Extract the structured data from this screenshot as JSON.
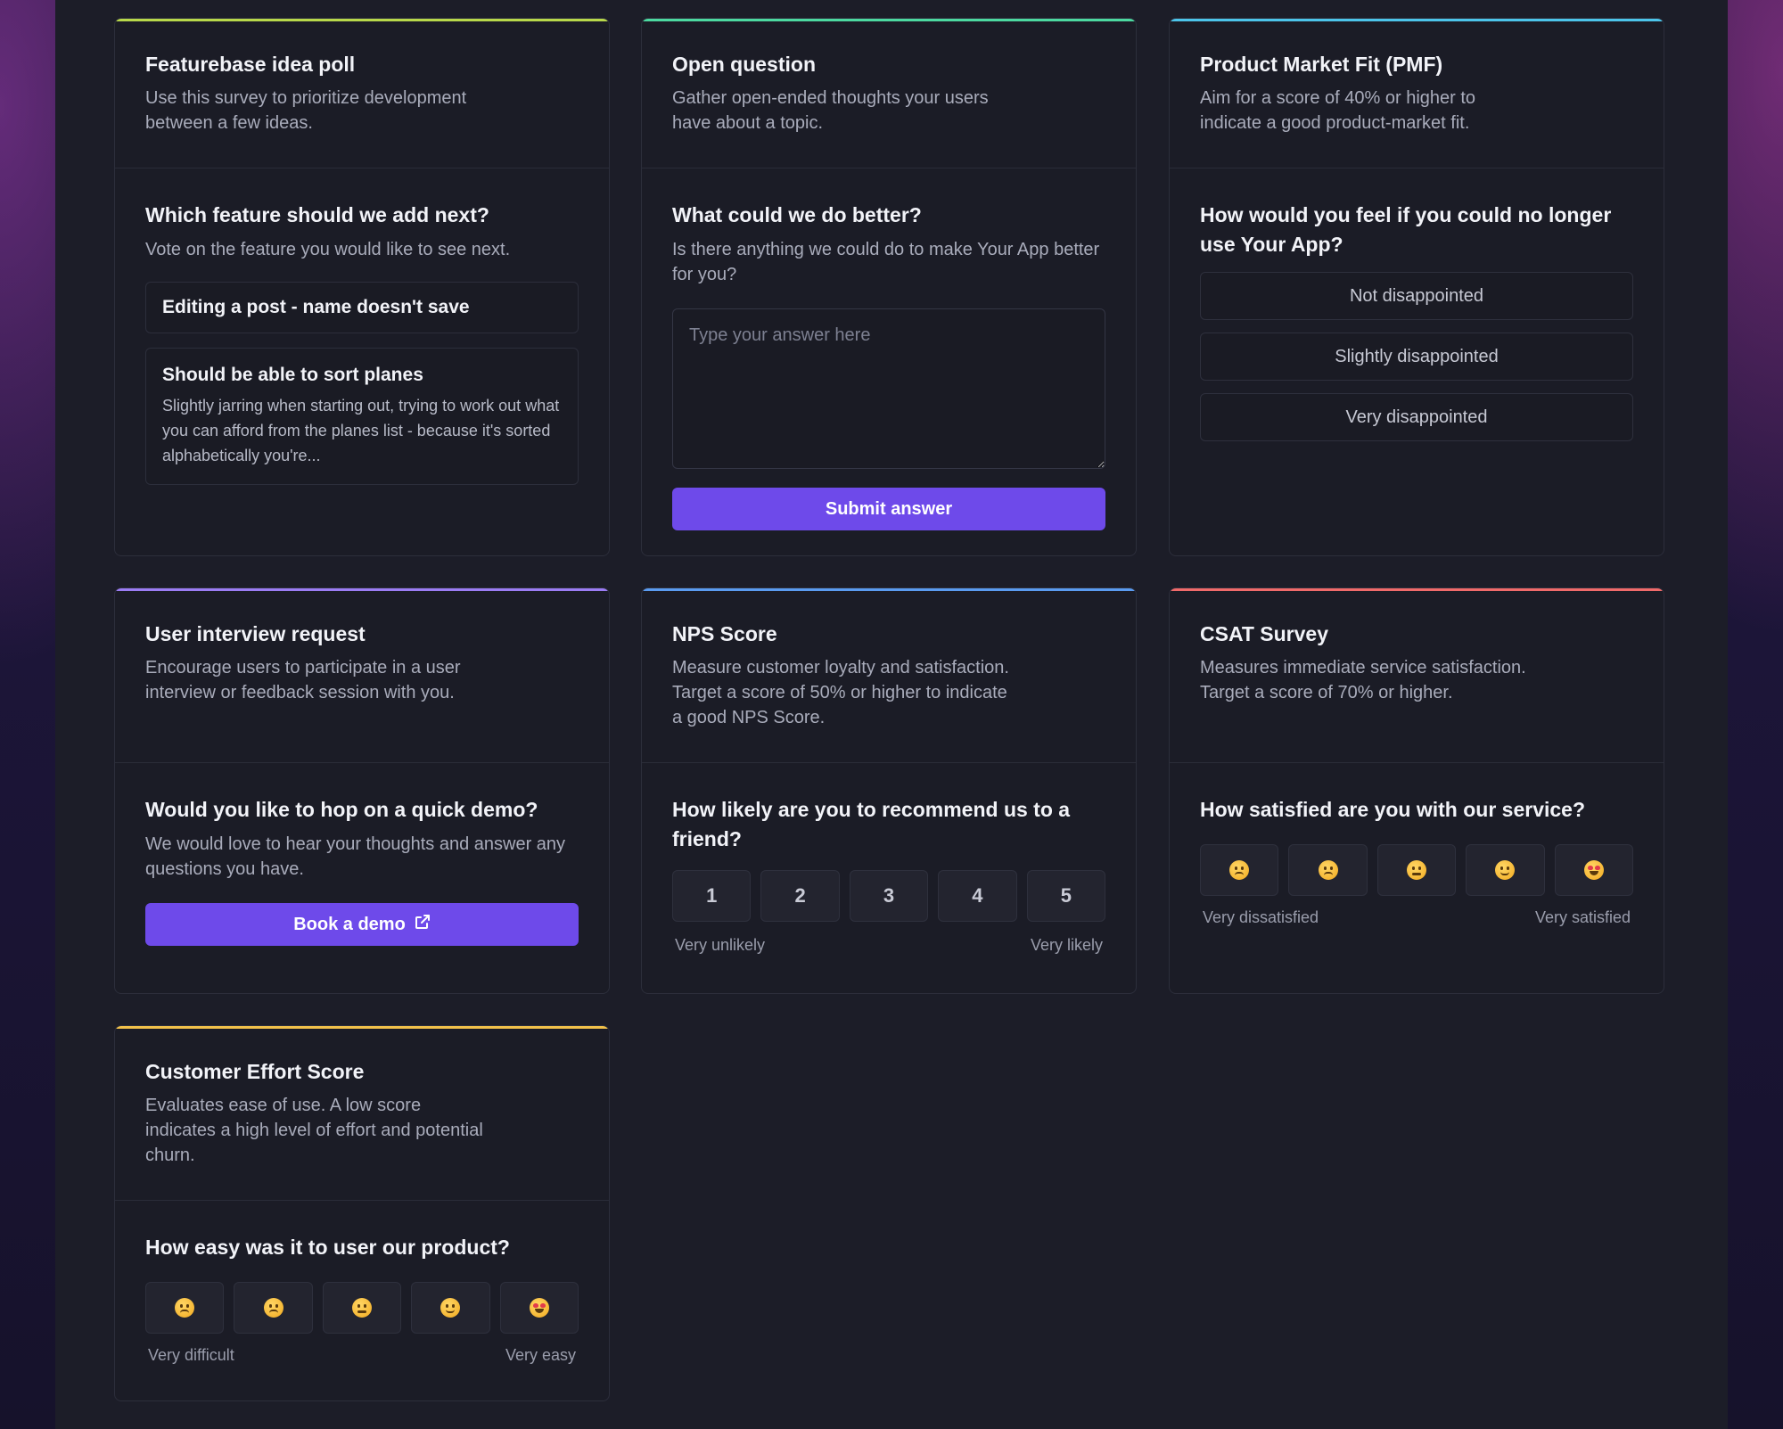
{
  "cards": {
    "featurebase": {
      "accent": "#b8d84a",
      "title": "Featurebase idea poll",
      "description": "Use this survey to prioritize development between a few ideas.",
      "question": "Which feature should we add next?",
      "question_desc": "Vote on the feature you would like to see next.",
      "ideas": [
        {
          "title": "Editing a post - name doesn't save",
          "text": ""
        },
        {
          "title": "Should be able to sort planes",
          "text": "Slightly jarring when starting out, trying to work out what you can afford from the planes list - because it's sorted alphabetically you're..."
        }
      ]
    },
    "open_question": {
      "accent": "#4cd9a0",
      "title": "Open question",
      "description": "Gather open-ended thoughts your users have about a topic.",
      "question": "What could we do better?",
      "question_desc": "Is there anything we could do to make Your App better for you?",
      "answer_placeholder": "Type your answer here",
      "submit_label": "Submit answer"
    },
    "pmf": {
      "accent": "#4cc4ea",
      "title": "Product Market Fit (PMF)",
      "description": "Aim for a score of 40% or higher to indicate a good product-market fit.",
      "question": "How would you feel if you could no longer use Your App?",
      "options": [
        "Not disappointed",
        "Slightly disappointed",
        "Very disappointed"
      ]
    },
    "interview": {
      "accent": "#9b7cf4",
      "title": "User interview request",
      "description": "Encourage users to participate in a user interview or feedback session with you.",
      "question": "Would you like to hop on a quick demo?",
      "question_desc": "We would love to hear your thoughts and answer any questions you have.",
      "button_label": "Book a demo",
      "button_icon": "external-link-icon"
    },
    "nps": {
      "accent": "#5a9bf0",
      "title": "NPS Score",
      "description": "Measure customer loyalty and satisfaction. Target a score of 50% or higher to indicate a good NPS Score.",
      "question": "How likely are you to recommend us to a friend?",
      "scale": [
        "1",
        "2",
        "3",
        "4",
        "5"
      ],
      "low_label": "Very unlikely",
      "high_label": "Very likely"
    },
    "csat": {
      "accent": "#f06a6a",
      "title": "CSAT Survey",
      "description": "Measures immediate service satisfaction. Target a score of 70% or higher.",
      "question": "How satisfied are you with our service?",
      "emojis": [
        "persevering-face-icon",
        "disappointed-face-icon",
        "neutral-face-icon",
        "slightly-smiling-face-icon",
        "heart-eyes-face-icon"
      ],
      "low_label": "Very dissatisfied",
      "high_label": "Very satisfied"
    },
    "ces": {
      "accent": "#f2c14a",
      "title": "Customer Effort Score",
      "description": "Evaluates ease of use. A low score indicates a high level of effort and potential churn.",
      "question": "How easy was it to user our product?",
      "emojis": [
        "persevering-face-icon",
        "disappointed-face-icon",
        "neutral-face-icon",
        "slightly-smiling-face-icon",
        "heart-eyes-face-icon"
      ],
      "low_label": "Very difficult",
      "high_label": "Very easy"
    }
  }
}
